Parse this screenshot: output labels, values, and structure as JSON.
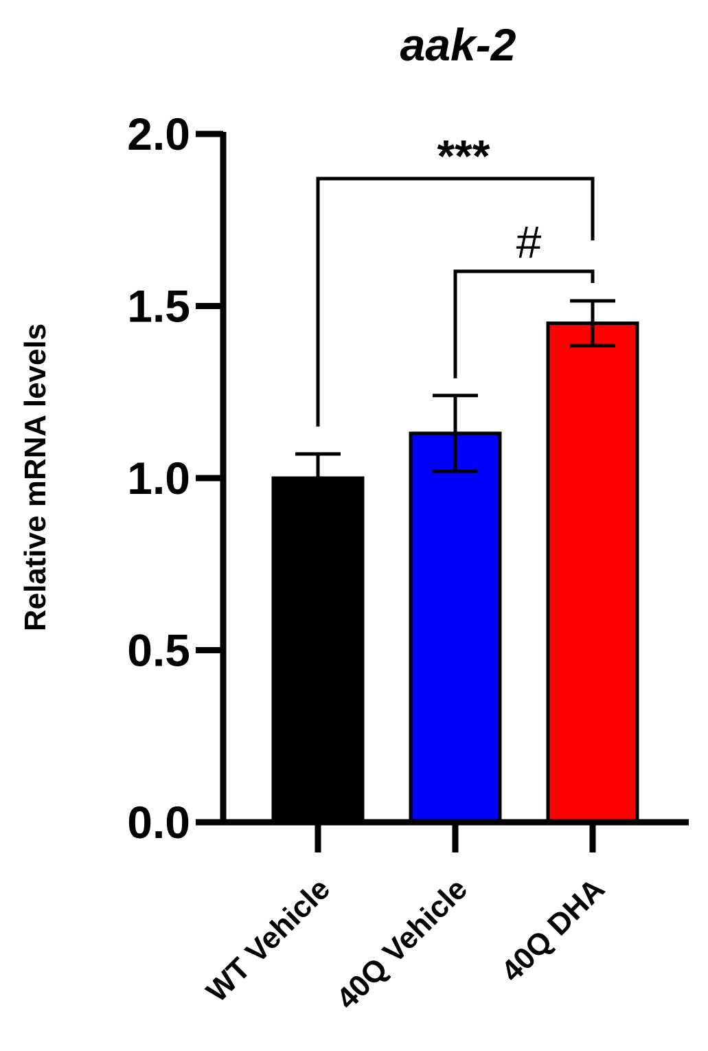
{
  "chart_data": {
    "type": "bar",
    "title": "aak-2",
    "xlabel": "",
    "ylabel": "Relative mRNA levels",
    "ylim": [
      0,
      2.0
    ],
    "yticks": [
      "0.0",
      "0.5",
      "1.0",
      "1.5",
      "2.0"
    ],
    "categories": [
      "WT Vehicle",
      "40Q Vehicle",
      "40Q DHA"
    ],
    "values": [
      1.0,
      1.13,
      1.45
    ],
    "errors": [
      0.07,
      0.11,
      0.065
    ],
    "colors": [
      "#000000",
      "#0000ff",
      "#ff0000"
    ],
    "significance": [
      {
        "from": "WT Vehicle",
        "to": "40Q DHA",
        "label": "***"
      },
      {
        "from": "40Q Vehicle",
        "to": "40Q DHA",
        "label": "#"
      }
    ],
    "grid": false,
    "legend": "none"
  }
}
